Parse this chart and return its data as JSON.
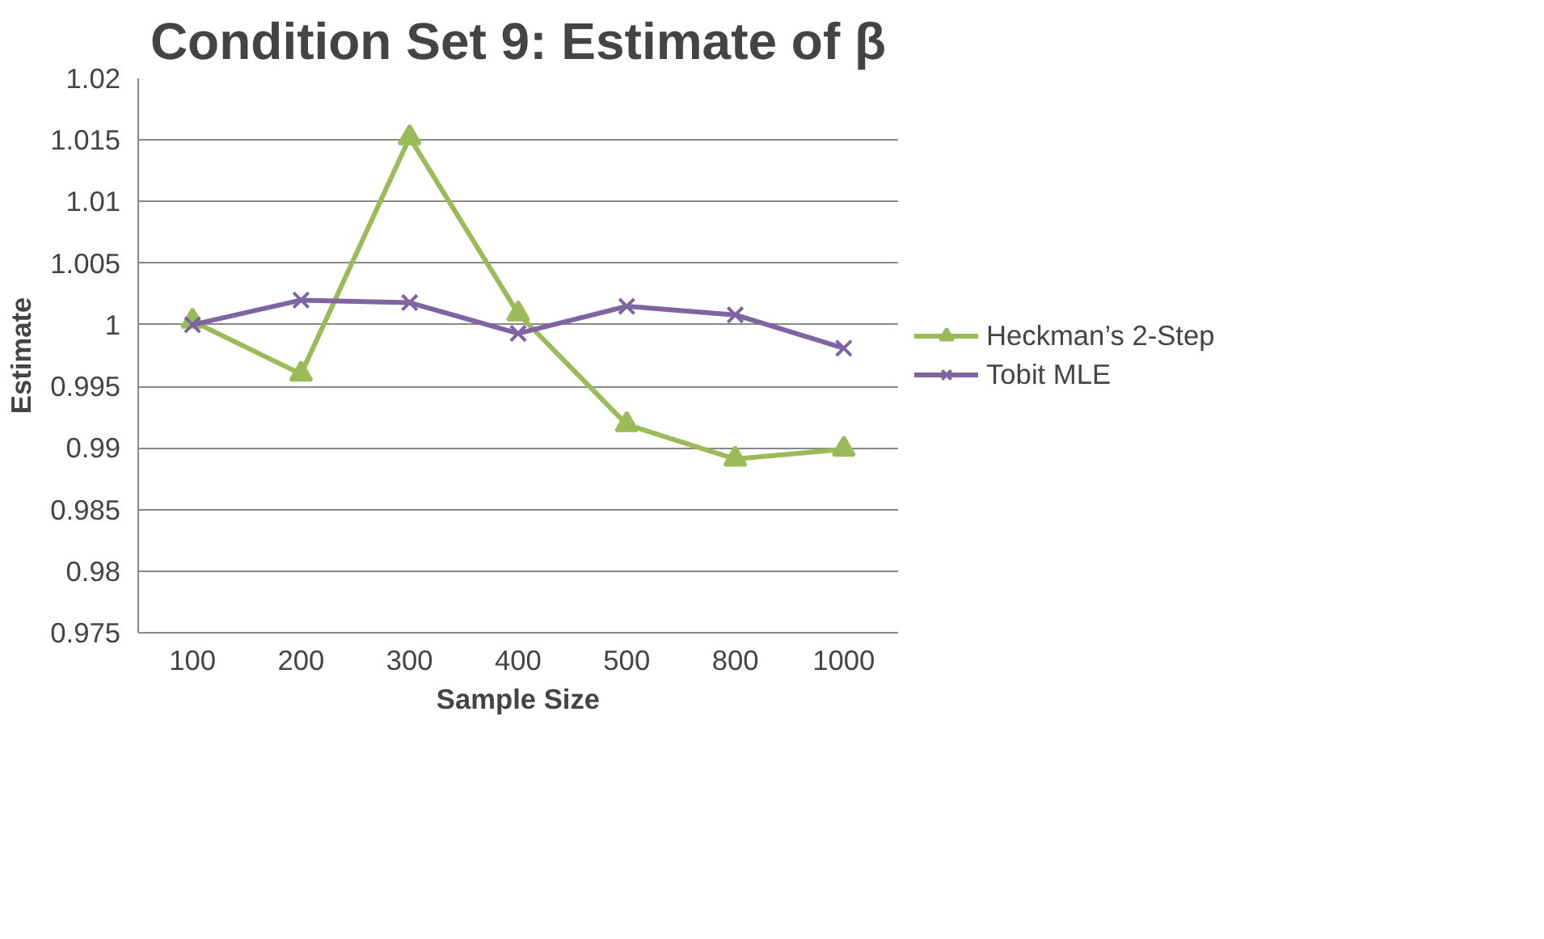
{
  "chart_data": {
    "type": "line",
    "title": "Condition Set 9: Estimate of β",
    "xlabel": "Sample Size",
    "ylabel": "Estimate",
    "categories": [
      "100",
      "200",
      "300",
      "400",
      "500",
      "800",
      "1000"
    ],
    "series": [
      {
        "name": "Heckman’s 2-Step",
        "color": "#9bbb59",
        "marker": "triangle",
        "values": [
          1.0003,
          0.996,
          1.0152,
          1.0009,
          0.9919,
          0.9891,
          0.9899
        ]
      },
      {
        "name": "Tobit MLE",
        "color": "#8064a2",
        "marker": "cross",
        "values": [
          1.0,
          1.002,
          1.0018,
          0.9993,
          1.0015,
          1.0008,
          0.9981
        ]
      }
    ],
    "ylim": [
      0.975,
      1.02
    ],
    "yticks": [
      0.975,
      0.98,
      0.985,
      0.99,
      0.995,
      1,
      1.005,
      1.01,
      1.015,
      1.02
    ],
    "grid": "y",
    "legend": "right",
    "line_style": "solid"
  }
}
